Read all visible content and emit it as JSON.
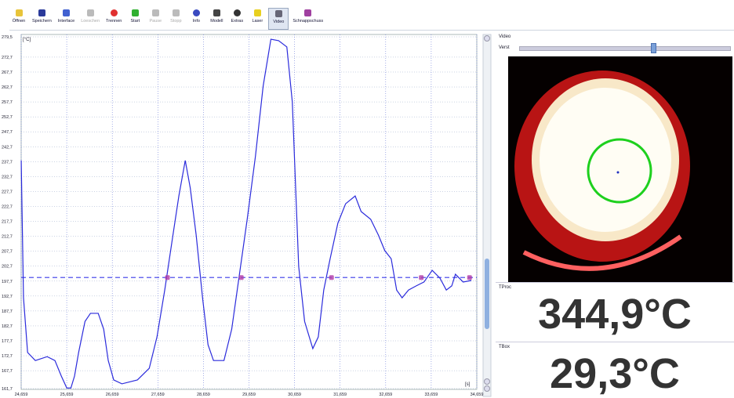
{
  "toolbar": [
    "Öffnen",
    "Speichern",
    "Interface",
    "Loeschen",
    "Trennen",
    "Start",
    "Pause",
    "Stopp",
    "Info",
    "Modell",
    "Extras",
    "Laser",
    "Video",
    "Schnappschuss"
  ],
  "chart_data": {
    "type": "line",
    "y_unit": "[°C]",
    "x_unit": "[s]",
    "x": [
      24.66,
      24.71,
      24.8,
      24.97,
      25.23,
      25.4,
      25.54,
      25.66,
      25.75,
      25.83,
      25.92,
      26.06,
      26.18,
      26.35,
      26.47,
      26.57,
      26.69,
      26.87,
      27.21,
      27.47,
      27.64,
      27.81,
      27.99,
      28.12,
      28.26,
      28.37,
      28.5,
      28.64,
      28.76,
      28.88,
      29.11,
      29.28,
      29.45,
      29.62,
      29.8,
      29.97,
      30.14,
      30.31,
      30.49,
      30.61,
      30.75,
      30.88,
      31.06,
      31.18,
      31.3,
      31.44,
      31.61,
      31.78,
      31.99,
      32.12,
      32.33,
      32.5,
      32.64,
      32.78,
      32.9,
      33.02,
      33.16,
      33.33,
      33.5,
      33.68,
      33.85,
      33.99,
      34.11,
      34.19,
      34.36,
      34.54
    ],
    "series": [
      {
        "color": "#2b2bdc",
        "values": [
          238.1,
          192.1,
          173.8,
          171.1,
          172.4,
          171.1,
          165.9,
          161.9,
          161.9,
          165.9,
          173.8,
          184.2,
          186.9,
          186.9,
          181.6,
          171.1,
          164.6,
          163.3,
          164.6,
          168.5,
          179.0,
          194.7,
          213.1,
          226.2,
          238.1,
          228.9,
          213.1,
          192.1,
          176.4,
          171.1,
          171.1,
          181.6,
          200.0,
          218.4,
          239.4,
          263.0,
          278.7,
          278.2,
          276.1,
          257.7,
          202.6,
          184.2,
          175.1,
          179.0,
          194.7,
          205.2,
          217.1,
          223.6,
          226.2,
          221.0,
          218.4,
          213.1,
          207.9,
          205.2,
          194.7,
          192.1,
          194.7,
          196.1,
          197.4,
          201.3,
          198.7,
          194.7,
          196.1,
          200.0,
          197.4,
          197.9
        ]
      }
    ],
    "threshold": 198.9,
    "threshold_color": "#3a3ae8",
    "markers_x": [
      27.87,
      29.49,
      31.47,
      33.44,
      34.5
    ],
    "marker_color": "#b03aa8",
    "xlim": [
      24.659,
      34.659
    ],
    "ylim": [
      161.7,
      279.5
    ],
    "xticks": [
      {
        "value": 24.659,
        "label": "24,659"
      },
      {
        "value": 25.659,
        "label": "25,659"
      },
      {
        "value": 26.659,
        "label": "26,659"
      },
      {
        "value": 27.659,
        "label": "27,659"
      },
      {
        "value": 28.659,
        "label": "28,659"
      },
      {
        "value": 29.659,
        "label": "29,659"
      },
      {
        "value": 30.659,
        "label": "30,659"
      },
      {
        "value": 31.659,
        "label": "31,659"
      },
      {
        "value": 32.659,
        "label": "32,659"
      },
      {
        "value": 33.659,
        "label": "33,659"
      },
      {
        "value": 34.659,
        "label": "34,659"
      }
    ],
    "yticks": [
      {
        "value": 161.7,
        "label": "161,7"
      },
      {
        "value": 167.7,
        "label": "167,7"
      },
      {
        "value": 172.7,
        "label": "172,7"
      },
      {
        "value": 177.7,
        "label": "177,7"
      },
      {
        "value": 182.7,
        "label": "182,7"
      },
      {
        "value": 187.7,
        "label": "187,7"
      },
      {
        "value": 192.7,
        "label": "192,7"
      },
      {
        "value": 197.7,
        "label": "197,7"
      },
      {
        "value": 202.7,
        "label": "202,7"
      },
      {
        "value": 207.7,
        "label": "207,7"
      },
      {
        "value": 212.7,
        "label": "212,7"
      },
      {
        "value": 217.7,
        "label": "217,7"
      },
      {
        "value": 222.7,
        "label": "222,7"
      },
      {
        "value": 227.7,
        "label": "227,7"
      },
      {
        "value": 232.7,
        "label": "232,7"
      },
      {
        "value": 237.7,
        "label": "237,7"
      },
      {
        "value": 242.7,
        "label": "242,7"
      },
      {
        "value": 247.7,
        "label": "247,7"
      },
      {
        "value": 252.7,
        "label": "252,7"
      },
      {
        "value": 257.7,
        "label": "257,7"
      },
      {
        "value": 262.7,
        "label": "262,7"
      },
      {
        "value": 267.7,
        "label": "267,7"
      },
      {
        "value": 272.7,
        "label": "272,7"
      },
      {
        "value": 279.5,
        "label": "279,5"
      }
    ],
    "grid": true
  },
  "video": {
    "title": "Video",
    "slider_label": "Verst"
  },
  "readouts": [
    {
      "label": "TProc",
      "value": "344,9°C"
    },
    {
      "label": "TBox",
      "value": "29,3°C"
    }
  ]
}
